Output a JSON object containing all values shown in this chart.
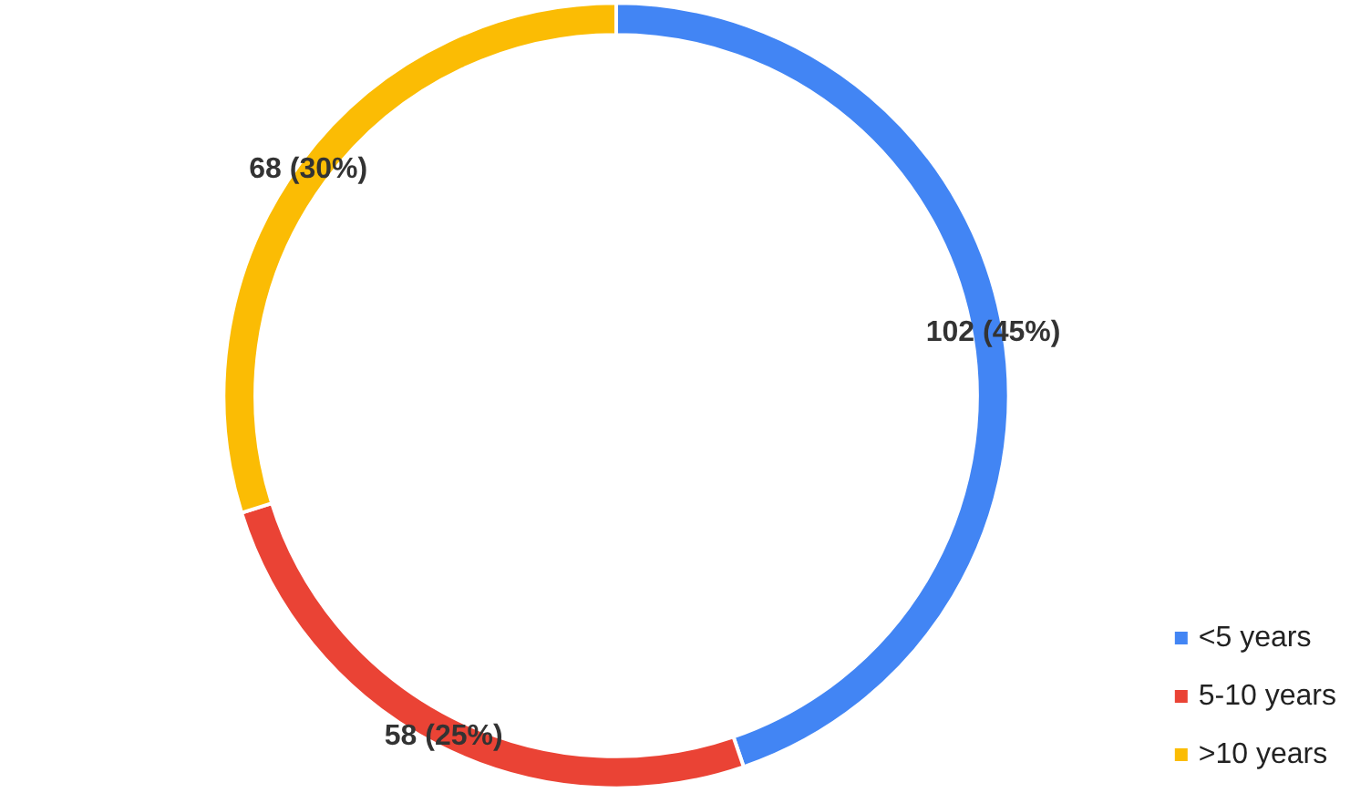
{
  "chart_data": {
    "type": "donut",
    "categories": [
      "<5 years",
      "5-10 years",
      ">10 years"
    ],
    "values": [
      102,
      58,
      68
    ],
    "colors": [
      "#4285f4",
      "#ea4335",
      "#fbbc04"
    ],
    "value_labels": [
      "102 (45%)",
      "58 (25%)",
      "68 (30%)"
    ],
    "legend": "bottom right"
  }
}
